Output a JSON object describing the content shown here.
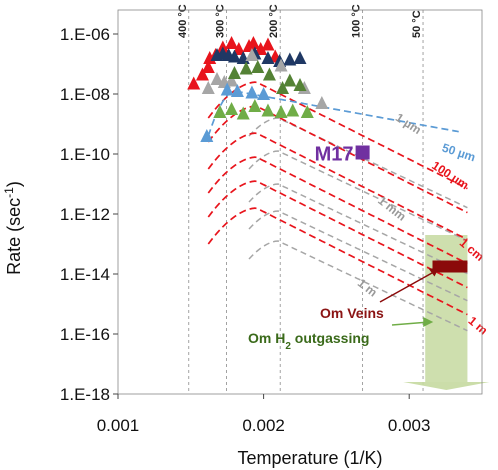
{
  "chart_data": {
    "type": "scatter",
    "xlabel": "Temperature (1/K)",
    "ylabel_main": "Rate (sec",
    "ylabel_sup": "-1",
    "ylabel_tail": ")",
    "xlim": [
      0.001,
      0.0035
    ],
    "ylim_log10": [
      -18,
      -5.2
    ],
    "x_ticks": [
      {
        "value": 0.001,
        "label": "0.001"
      },
      {
        "value": 0.002,
        "label": "0.002"
      },
      {
        "value": 0.003,
        "label": "0.003"
      }
    ],
    "y_ticks": [
      {
        "exp": -6,
        "label": "1.E-06"
      },
      {
        "exp": -8,
        "label": "1.E-08"
      },
      {
        "exp": -10,
        "label": "1.E-10"
      },
      {
        "exp": -12,
        "label": "1.E-12"
      },
      {
        "exp": -14,
        "label": "1.E-14"
      },
      {
        "exp": -16,
        "label": "1.E-16"
      },
      {
        "exp": -18,
        "label": "1.E-18"
      }
    ],
    "temperature_lines": [
      {
        "x": 0.001486,
        "label": "400 °C"
      },
      {
        "x": 0.001745,
        "label": "300 °C"
      },
      {
        "x": 0.002114,
        "label": "200 °C"
      },
      {
        "x": 0.00268,
        "label": "100 °C"
      },
      {
        "x": 0.003095,
        "label": "50 °C"
      }
    ],
    "colors": {
      "red": "#e8141c",
      "navy": "#1f3864",
      "gray": "#a6a6a6",
      "light_blue": "#5b9bd5",
      "dark_green": "#548235",
      "light_green": "#70ad47",
      "purple": "#7030a0",
      "dark_red": "#8b0a0a",
      "green_arrow": "#c5d9a0",
      "om_veins_text": "#8b1414",
      "om_h2_text": "#3a6a1a"
    },
    "series": [
      {
        "color": "red",
        "points": [
          [
            0.00152,
            -7.65
          ],
          [
            0.00158,
            -7.35
          ],
          [
            0.00162,
            -7.1
          ],
          [
            0.00167,
            -6.7
          ],
          [
            0.00172,
            -6.45
          ],
          [
            0.00178,
            -6.3
          ],
          [
            0.00183,
            -6.5
          ],
          [
            0.0019,
            -6.4
          ],
          [
            0.00193,
            -6.3
          ],
          [
            0.00198,
            -6.5
          ],
          [
            0.00203,
            -6.35
          ],
          [
            0.00208,
            -6.75
          ],
          [
            0.00163,
            -6.8
          ]
        ]
      },
      {
        "color": "navy",
        "points": [
          [
            0.00168,
            -6.7
          ],
          [
            0.00172,
            -6.65
          ],
          [
            0.00176,
            -6.7
          ],
          [
            0.0018,
            -6.75
          ],
          [
            0.00186,
            -6.8
          ],
          [
            0.00194,
            -6.65
          ],
          [
            0.00203,
            -6.8
          ],
          [
            0.00211,
            -6.9
          ],
          [
            0.00218,
            -6.85
          ],
          [
            0.00225,
            -6.8
          ]
        ]
      },
      {
        "color": "gray",
        "points": [
          [
            0.00162,
            -7.8
          ],
          [
            0.00168,
            -7.5
          ],
          [
            0.00173,
            -7.6
          ],
          [
            0.00178,
            -7.55
          ],
          [
            0.00192,
            -6.7
          ],
          [
            0.00212,
            -7.05
          ],
          [
            0.00228,
            -7.8
          ],
          [
            0.0024,
            -8.3
          ]
        ]
      },
      {
        "color": "dark_green",
        "points": [
          [
            0.0018,
            -7.3
          ],
          [
            0.00188,
            -7.15
          ],
          [
            0.00196,
            -7.1
          ],
          [
            0.00204,
            -7.35
          ],
          [
            0.00213,
            -7.8
          ],
          [
            0.00218,
            -7.55
          ],
          [
            0.00225,
            -7.7
          ]
        ]
      },
      {
        "color": "light_blue",
        "points": [
          [
            0.00161,
            -9.4
          ],
          [
            0.0017,
            -8.6
          ],
          [
            0.00175,
            -7.85
          ],
          [
            0.00182,
            -7.9
          ],
          [
            0.00192,
            -7.95
          ],
          [
            0.002,
            -8.0
          ]
        ]
      },
      {
        "color": "light_green",
        "points": [
          [
            0.0017,
            -8.6
          ],
          [
            0.00178,
            -8.5
          ],
          [
            0.00186,
            -8.65
          ],
          [
            0.00194,
            -8.4
          ],
          [
            0.00203,
            -8.55
          ],
          [
            0.00212,
            -8.6
          ],
          [
            0.0022,
            -8.55
          ],
          [
            0.0023,
            -8.6
          ]
        ]
      }
    ],
    "red_curves": [
      -7.6,
      -8.4,
      -9.3,
      -10.1,
      -10.9,
      -11.8
    ],
    "gray_curves": [
      -8.8,
      -9.9,
      -11.0,
      -11.9,
      -12.9
    ],
    "red_curve_labels": [
      {
        "text": "100 µm",
        "x": 0.00315,
        "exp": -10.45,
        "angle": 33
      },
      {
        "text": "1 cm",
        "x": 0.00334,
        "exp": -13.0,
        "angle": 40
      },
      {
        "text": "1 m",
        "x": 0.0034,
        "exp": -15.6,
        "angle": 40
      }
    ],
    "gray_curve_labels": [
      {
        "text": "1 µm",
        "x": 0.0029,
        "exp": -8.85,
        "angle": 33
      },
      {
        "text": "1 mm",
        "x": 0.00278,
        "exp": -11.6,
        "angle": 38
      },
      {
        "text": "1 m",
        "x": 0.00264,
        "exp": -14.35,
        "angle": 38
      }
    ],
    "blue_curve_label": {
      "text": "50 µm",
      "x": 0.00322,
      "exp": -9.9,
      "angle": 18
    },
    "m17": {
      "label": "M17",
      "x": 0.00268,
      "exp": -9.95
    },
    "om_veins": {
      "label": "Om Veins",
      "x1": 0.00316,
      "x2": 0.0034,
      "exp_top": -13.55,
      "exp_bottom": -13.95
    },
    "om_h2": {
      "label_main": "Om H",
      "label_sub": "2",
      "label_tail": " outgassing"
    },
    "outgassing_box": {
      "x1": 0.00311,
      "x2": 0.0034,
      "exp_top": -12.7,
      "exp_bottom": -17.6
    }
  }
}
